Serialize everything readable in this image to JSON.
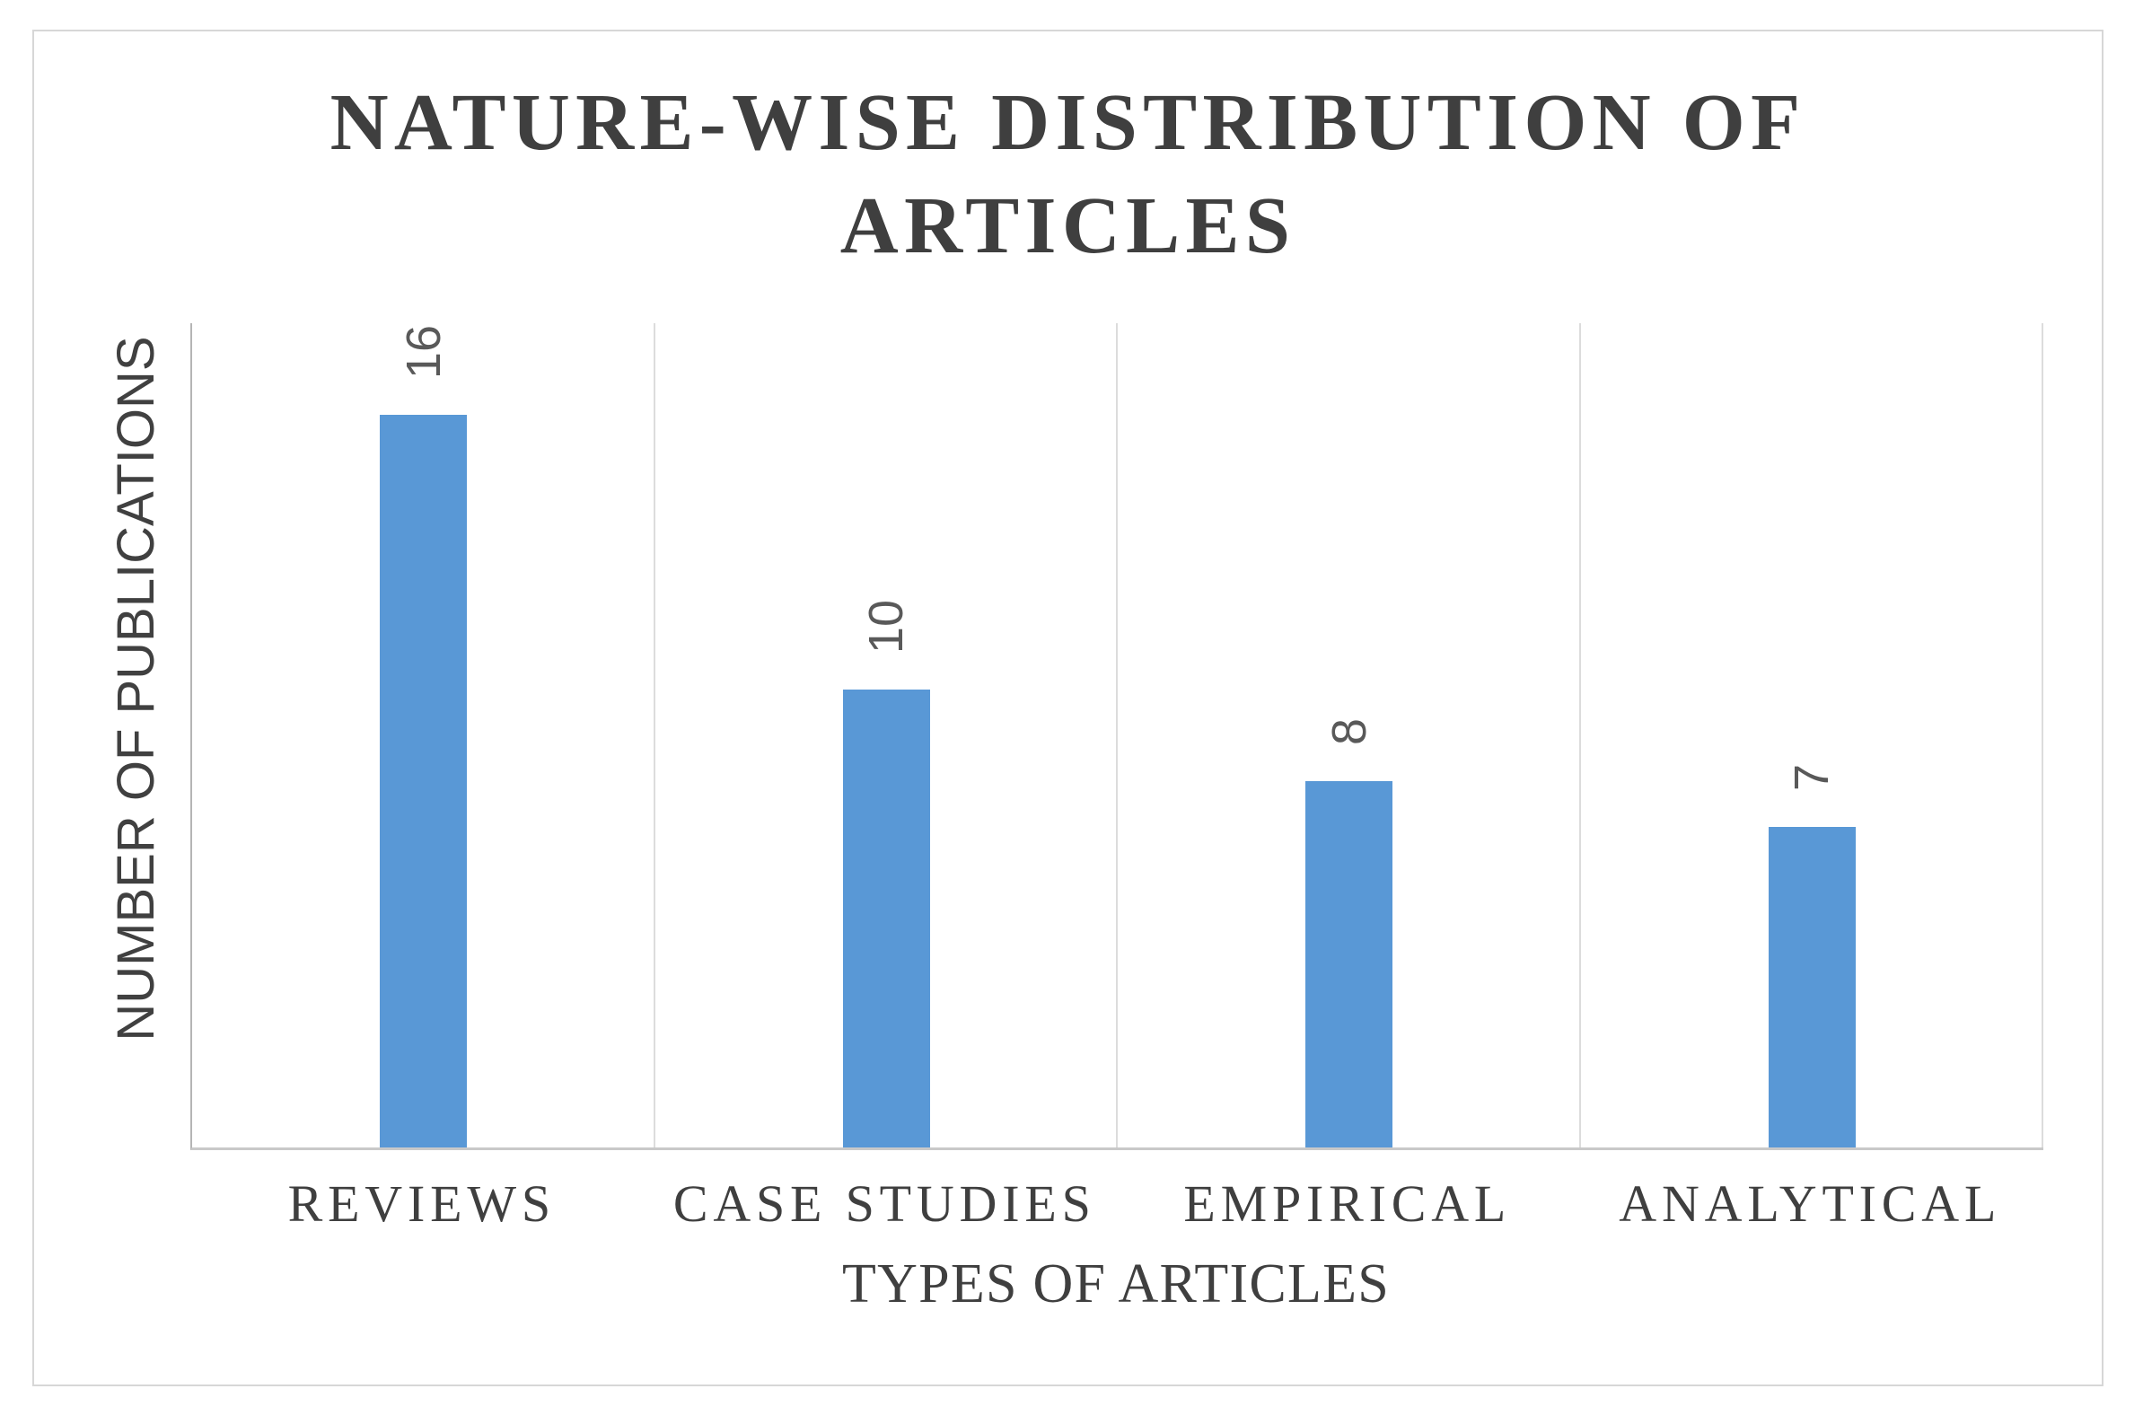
{
  "chart_data": {
    "type": "bar",
    "title": "NATURE-WISE DISTRIBUTION OF ARTICLES",
    "title_lines": [
      "NATURE-WISE DISTRIBUTION OF",
      "ARTICLES"
    ],
    "categories": [
      "REVIEWS",
      "CASE STUDIES",
      "EMPIRICAL",
      "ANALYTICAL"
    ],
    "values": [
      16,
      10,
      8,
      7
    ],
    "xlabel": "TYPES OF ARTICLES",
    "ylabel": "NUMBER OF PUBLICATIONS",
    "ylim": [
      0,
      18
    ],
    "y_tick_labels_visible": false,
    "data_labels": [
      "16",
      "10",
      "8",
      "7"
    ],
    "data_label_rotation_deg": 270,
    "legend_position": "none",
    "gridlines": "vertical-category-separators"
  },
  "colors": {
    "bar_fill": "#5998d6",
    "title_text": "#3f3f3f",
    "axis_text": "#3f3f3f",
    "data_label_text": "#595959",
    "axis_line": "#b5b5b5",
    "baseline": "#c9c9c9",
    "separator_line": "#dcdcdc",
    "frame_border": "#d7d7d7",
    "background": "#ffffff"
  }
}
